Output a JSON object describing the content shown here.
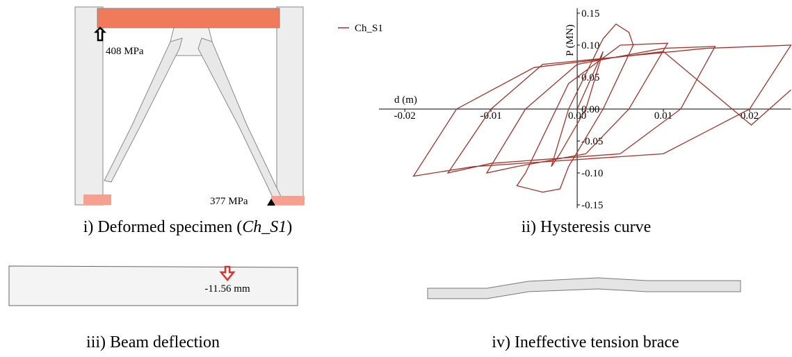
{
  "panels": {
    "specimen": {
      "caption": {
        "prefix": "i) Deformed specimen (",
        "italic": "Ch_S1",
        "suffix": ")"
      },
      "stress_top": "408 MPa",
      "stress_bottom": "377 MPa"
    },
    "hysteresis": {
      "caption": "ii) Hysteresis curve"
    },
    "beam": {
      "caption": "iii) Beam deflection",
      "deflection": "-11.56 mm"
    },
    "brace": {
      "caption": "iv) Ineffective tension brace"
    }
  },
  "chart_data": {
    "type": "line",
    "xlabel": "d (m)",
    "ylabel": "P (MN)",
    "legend": "top-left",
    "xlim": [
      -0.023,
      0.0248
    ],
    "ylim": [
      -0.155,
      0.158
    ],
    "xticks": [
      -0.02,
      -0.01,
      {
        "value": 0,
        "label": "0.00"
      },
      0.01,
      0.02
    ],
    "yticks": [
      0.15,
      {
        "value": 0.1,
        "label": "0.10"
      },
      0.05,
      {
        "value": 0,
        "label": "0.00"
      },
      -0.05,
      {
        "value": -0.1,
        "label": "-0.10"
      },
      -0.15
    ],
    "x": [
      0,
      0.002,
      0.003,
      0.001,
      -0.002,
      -0.003,
      -0.001,
      0.003,
      0.0045,
      0.006,
      0.0065,
      0.003,
      -0.001,
      -0.002,
      -0.004,
      -0.007,
      -0.006,
      -0.001,
      0.005,
      0.0105,
      0.006,
      0.001,
      -0.007,
      -0.0105,
      -0.006,
      0,
      0.01,
      0.016,
      0.012,
      0.005,
      -0.01,
      -0.015,
      -0.01,
      -0.004,
      0.015,
      0.0248,
      0.02,
      0.01,
      -0.012,
      -0.019,
      -0.014,
      -0.005,
      0.01,
      0.0202,
      0.0248
    ],
    "series": [
      {
        "name": "Ch_S1",
        "color": "#a3322a",
        "values": [
          0,
          0.06,
          0.09,
          0,
          -0.07,
          -0.09,
          0,
          0.11,
          0.133,
          0.12,
          0.1,
          0,
          -0.09,
          -0.125,
          -0.13,
          -0.12,
          -0.1,
          0.04,
          0.1,
          0.103,
          0,
          -0.07,
          -0.09,
          -0.1,
          0,
          0.07,
          0.095,
          0.098,
          0,
          -0.07,
          -0.085,
          -0.1,
          0,
          0.07,
          0.095,
          0.1,
          0,
          -0.07,
          -0.09,
          -0.105,
          0,
          0.065,
          0.09,
          -0.025,
          0.03
        ]
      }
    ]
  }
}
